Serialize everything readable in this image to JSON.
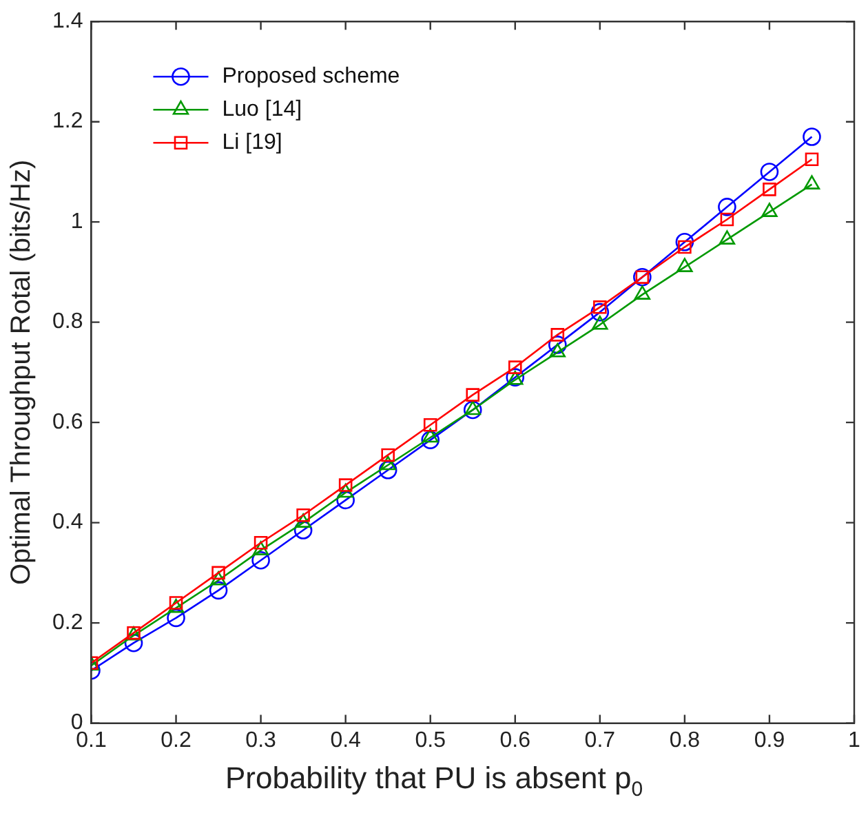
{
  "chart_data": {
    "type": "line",
    "xlabel": "Probability that PU is absent p$_{0}$",
    "ylabel": "Optimal Throughput Rotal (bits/Hz)",
    "x": [
      0.1,
      0.15,
      0.2,
      0.25,
      0.3,
      0.35,
      0.4,
      0.45,
      0.5,
      0.55,
      0.6,
      0.65,
      0.7,
      0.75,
      0.8,
      0.85,
      0.9,
      0.95
    ],
    "series": [
      {
        "name": "Proposed scheme",
        "color": "#0000ff",
        "marker": "circle",
        "values": [
          0.105,
          0.16,
          0.21,
          0.265,
          0.325,
          0.385,
          0.445,
          0.505,
          0.565,
          0.625,
          0.69,
          0.755,
          0.82,
          0.89,
          0.96,
          1.03,
          1.1,
          1.17
        ]
      },
      {
        "name": "Luo [14]",
        "color": "#009900",
        "marker": "triangle",
        "values": [
          0.115,
          0.175,
          0.23,
          0.285,
          0.345,
          0.4,
          0.46,
          0.515,
          0.57,
          0.625,
          0.685,
          0.74,
          0.795,
          0.855,
          0.91,
          0.965,
          1.02,
          1.075
        ]
      },
      {
        "name": "Li [19]",
        "color": "#ff0000",
        "marker": "square",
        "values": [
          0.12,
          0.18,
          0.24,
          0.3,
          0.36,
          0.415,
          0.475,
          0.535,
          0.595,
          0.655,
          0.71,
          0.775,
          0.83,
          0.89,
          0.95,
          1.005,
          1.065,
          1.125
        ]
      }
    ],
    "xlim": [
      0.1,
      1
    ],
    "xticks": [
      0.1,
      0.2,
      0.3,
      0.4,
      0.5,
      0.6,
      0.7,
      0.8,
      0.9,
      1
    ],
    "ylim": [
      0,
      1.4
    ],
    "yticks": [
      0,
      0.2,
      0.4,
      0.6,
      0.8,
      1,
      1.2,
      1.4
    ],
    "grid": false,
    "legend": "top left",
    "line_style": "solid"
  }
}
